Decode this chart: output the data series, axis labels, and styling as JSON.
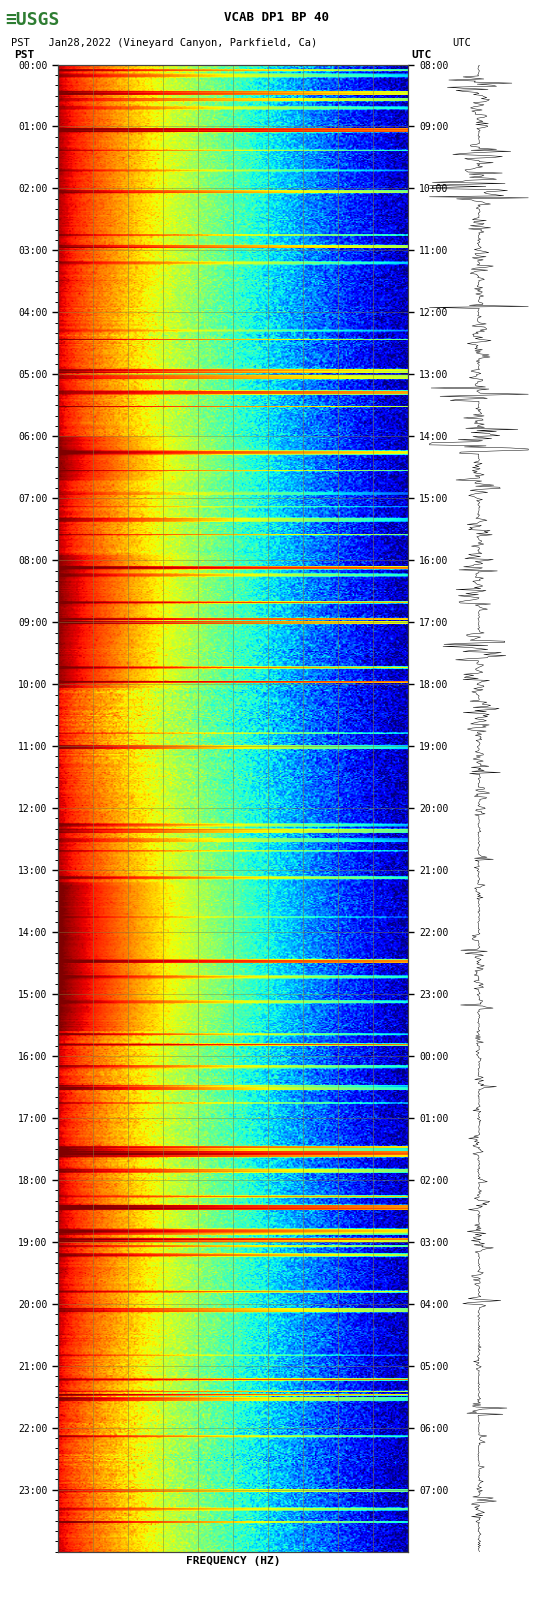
{
  "title_line1": "VCAB DP1 BP 40",
  "title_line2_left": "PST   Jan28,2022 (Vineyard Canyon, Parkfield, Ca)",
  "title_line2_right": "UTC",
  "xlabel": "FREQUENCY (HZ)",
  "left_label": "PST",
  "right_label": "UTC",
  "freq_min": 0,
  "freq_max": 50,
  "freq_ticks": [
    0,
    5,
    10,
    15,
    20,
    25,
    30,
    35,
    40,
    45,
    50
  ],
  "left_time_labels": [
    "00:00",
    "01:00",
    "02:00",
    "03:00",
    "04:00",
    "05:00",
    "06:00",
    "07:00",
    "08:00",
    "09:00",
    "10:00",
    "11:00",
    "12:00",
    "13:00",
    "14:00",
    "15:00",
    "16:00",
    "17:00",
    "18:00",
    "19:00",
    "20:00",
    "21:00",
    "22:00",
    "23:00"
  ],
  "right_time_labels": [
    "08:00",
    "09:00",
    "10:00",
    "11:00",
    "12:00",
    "13:00",
    "14:00",
    "15:00",
    "16:00",
    "17:00",
    "18:00",
    "19:00",
    "20:00",
    "21:00",
    "22:00",
    "23:00",
    "00:00",
    "01:00",
    "02:00",
    "03:00",
    "04:00",
    "05:00",
    "06:00",
    "07:00"
  ],
  "n_time_steps": 1440,
  "n_freq_bins": 250,
  "background_color": "#ffffff",
  "usgs_logo_color": "#2e7d32",
  "title_color": "#000000",
  "text_color": "#000000",
  "cmap": "jet",
  "seed": 42,
  "grid_color": "#808040",
  "grid_alpha": 0.6,
  "waveform_color": "#000000",
  "fig_width": 5.52,
  "fig_height": 16.13,
  "dpi": 100
}
